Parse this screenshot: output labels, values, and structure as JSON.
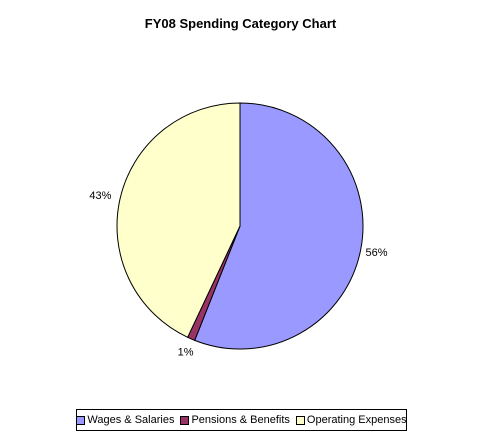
{
  "chart_data": {
    "type": "pie",
    "title": "FY08 Spending Category Chart",
    "categories": [
      "Wages & Salaries",
      "Pensions & Benefits",
      "Operating Expenses"
    ],
    "values": [
      56,
      1,
      43
    ],
    "labels": [
      "56%",
      "1%",
      "43%"
    ],
    "colors": [
      "#9999ff",
      "#993366",
      "#ffffcc"
    ],
    "legend_position": "bottom"
  }
}
